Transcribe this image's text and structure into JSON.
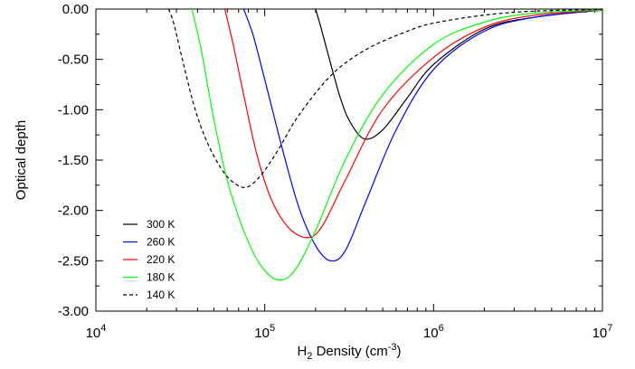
{
  "chart_data": {
    "type": "line",
    "xlabel": {
      "main": "H",
      "sub": "2",
      "rest": " Density (cm",
      "sup": "-3",
      "close": ")"
    },
    "ylabel": "Optical depth",
    "x_scale": "log",
    "xlim": [
      10000,
      10000000
    ],
    "ylim": [
      -3.0,
      0.0
    ],
    "x_ticks": [
      {
        "value": 10000,
        "base": "10",
        "exp": "4"
      },
      {
        "value": 100000,
        "base": "10",
        "exp": "5"
      },
      {
        "value": 1000000,
        "base": "10",
        "exp": "6"
      },
      {
        "value": 10000000,
        "base": "10",
        "exp": "7"
      }
    ],
    "y_ticks": [
      {
        "value": 0.0,
        "label": "0.00"
      },
      {
        "value": -0.5,
        "label": "-0.50"
      },
      {
        "value": -1.0,
        "label": "-1.00"
      },
      {
        "value": -1.5,
        "label": "-1.50"
      },
      {
        "value": -2.0,
        "label": "-2.00"
      },
      {
        "value": -2.5,
        "label": "-2.50"
      },
      {
        "value": -3.0,
        "label": "-3.00"
      }
    ],
    "grid": false,
    "legend_position": "bottom-left",
    "series": [
      {
        "name": "300 K",
        "color": "#000000",
        "dashed": false,
        "x": [
          200000,
          215000,
          240000,
          280000,
          320000,
          390000,
          500000,
          700000,
          1000000,
          2000000,
          4000000,
          10000000
        ],
        "y": [
          0.0,
          -0.18,
          -0.48,
          -0.88,
          -1.12,
          -1.29,
          -1.2,
          -0.88,
          -0.55,
          -0.2,
          -0.08,
          -0.01
        ]
      },
      {
        "name": "260 K",
        "color": "#0000ff",
        "dashed": false,
        "x": [
          75000,
          85000,
          100000,
          130000,
          160000,
          200000,
          245000,
          300000,
          400000,
          600000,
          1000000,
          2000000,
          4000000,
          10000000
        ],
        "y": [
          0.0,
          -0.25,
          -0.7,
          -1.45,
          -1.98,
          -2.35,
          -2.5,
          -2.4,
          -1.9,
          -1.2,
          -0.6,
          -0.22,
          -0.08,
          -0.01
        ]
      },
      {
        "name": "220 K",
        "color": "#ff0000",
        "dashed": false,
        "x": [
          58000,
          65000,
          75000,
          90000,
          110000,
          140000,
          180000,
          220000,
          300000,
          500000,
          1000000,
          2000000,
          4000000,
          10000000
        ],
        "y": [
          0.0,
          -0.35,
          -0.85,
          -1.45,
          -1.9,
          -2.18,
          -2.27,
          -2.15,
          -1.7,
          -1.0,
          -0.48,
          -0.18,
          -0.06,
          -0.01
        ]
      },
      {
        "name": "180 K",
        "color": "#00ff00",
        "dashed": false,
        "x": [
          37000,
          42000,
          50000,
          60000,
          75000,
          95000,
          120000,
          150000,
          200000,
          300000,
          500000,
          1000000,
          2000000,
          4000000,
          10000000
        ],
        "y": [
          0.0,
          -0.4,
          -1.1,
          -1.7,
          -2.2,
          -2.55,
          -2.69,
          -2.6,
          -2.2,
          -1.5,
          -0.85,
          -0.35,
          -0.13,
          -0.04,
          -0.01
        ]
      },
      {
        "name": "140 K",
        "color": "#000000",
        "dashed": true,
        "x": [
          27000,
          29000,
          32000,
          38000,
          45000,
          55000,
          65000,
          78000,
          95000,
          120000,
          160000,
          250000,
          400000,
          700000,
          1000000,
          2000000,
          4000000,
          10000000
        ],
        "y": [
          0.0,
          -0.15,
          -0.45,
          -0.95,
          -1.3,
          -1.58,
          -1.72,
          -1.77,
          -1.65,
          -1.4,
          -1.05,
          -0.65,
          -0.4,
          -0.22,
          -0.14,
          -0.06,
          -0.02,
          -0.005
        ]
      }
    ]
  }
}
